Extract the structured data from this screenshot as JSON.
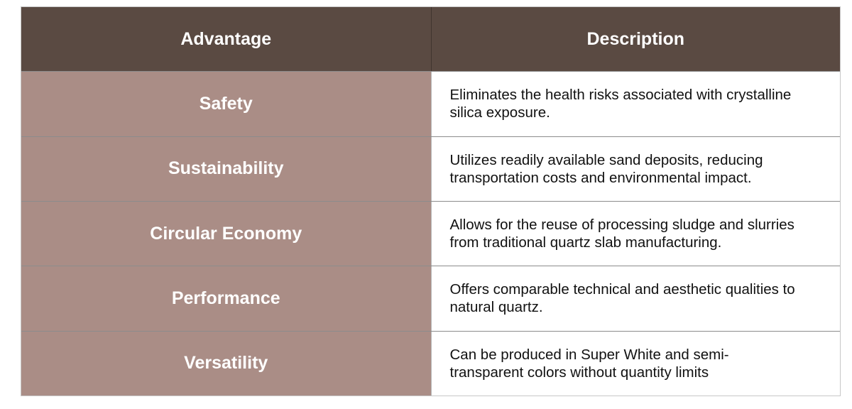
{
  "page": {
    "background": "#ffffff"
  },
  "theme": {
    "page_bg": "#ffffff",
    "header_bg": "#5a4a42",
    "header_text": "#ffffff",
    "advantage_bg": "#aa8d86",
    "advantage_text": "#ffffff",
    "description_bg": "#ffffff",
    "description_text": "#111111",
    "row_border": "rgba(0,0,0,0.45)",
    "column_border": "rgba(0,0,0,0.28)",
    "outer_border": "rgba(0,0,0,0.22)"
  },
  "table": {
    "columns": [
      {
        "label": "Advantage"
      },
      {
        "label": "Description"
      }
    ],
    "rows": [
      {
        "advantage": "Safety",
        "description": "Eliminates the health risks associated with crystalline\nsilica exposure."
      },
      {
        "advantage": "Sustainability",
        "description": "Utilizes readily available sand deposits, reducing\ntransportation costs and environmental impact."
      },
      {
        "advantage": "Circular Economy",
        "description": "Allows for the reuse of processing sludge and slurries\nfrom traditional quartz slab manufacturing."
      },
      {
        "advantage": "Performance",
        "description": "Offers comparable technical and aesthetic qualities to\nnatural quartz."
      },
      {
        "advantage": "Versatility",
        "description": "Can be produced in Super White and semi-\ntransparent colors without quantity limits"
      }
    ]
  }
}
